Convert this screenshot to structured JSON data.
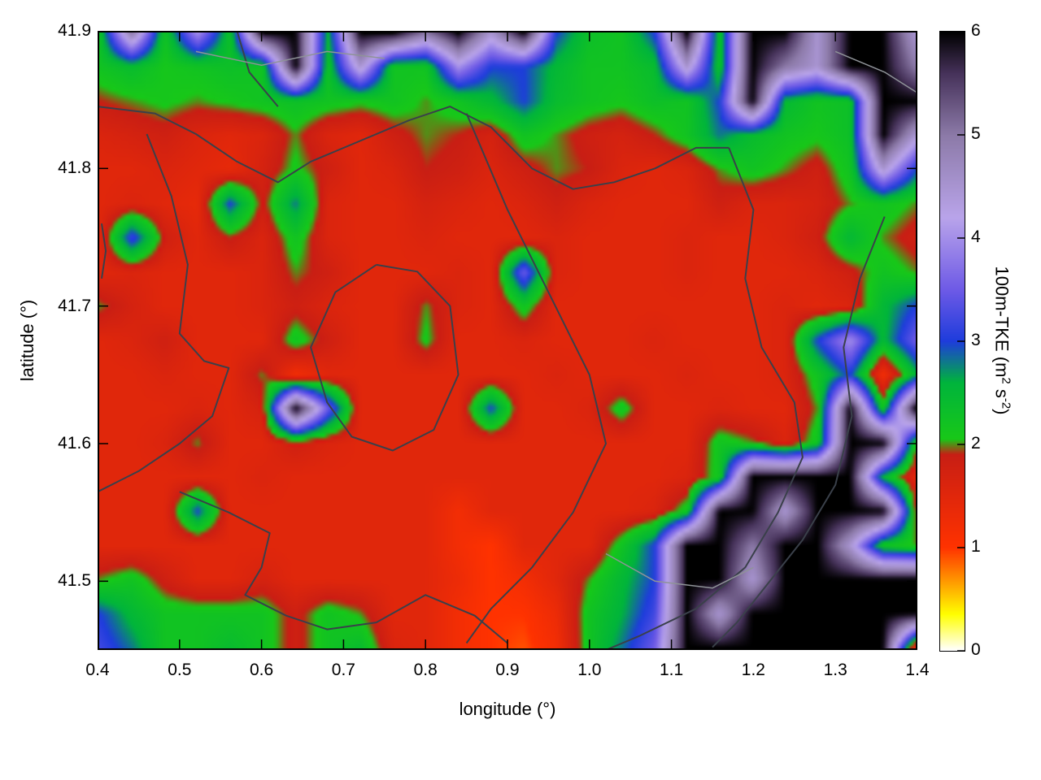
{
  "chart_data": {
    "type": "heatmap",
    "xlabel": "longitude (°)",
    "ylabel": "latitude (°)",
    "x_range": [
      0.4,
      1.4
    ],
    "y_range": [
      41.45,
      41.9
    ],
    "colorbar_range": [
      0,
      6
    ],
    "colorbar_title_parts": [
      {
        "t": "100m-TKE (m"
      },
      {
        "t": "2",
        "sup": true
      },
      {
        "t": " s"
      },
      {
        "t": "-2",
        "sup": true
      },
      {
        "t": ")"
      }
    ],
    "x_ticks": [
      {
        "v": 0.4,
        "label": "0.4"
      },
      {
        "v": 0.5,
        "label": "0.5"
      },
      {
        "v": 0.6,
        "label": "0.6"
      },
      {
        "v": 0.7,
        "label": "0.7"
      },
      {
        "v": 0.8,
        "label": "0.8"
      },
      {
        "v": 0.9,
        "label": "0.9"
      },
      {
        "v": 1.0,
        "label": "1.0"
      },
      {
        "v": 1.1,
        "label": "1.1"
      },
      {
        "v": 1.2,
        "label": "1.2"
      },
      {
        "v": 1.3,
        "label": "1.3"
      },
      {
        "v": 1.4,
        "label": "1.4"
      }
    ],
    "y_ticks": [
      {
        "v": 41.5,
        "label": "41.5"
      },
      {
        "v": 41.6,
        "label": "41.6"
      },
      {
        "v": 41.7,
        "label": "41.7"
      },
      {
        "v": 41.8,
        "label": "41.8"
      },
      {
        "v": 41.9,
        "label": "41.9"
      }
    ],
    "colorbar_ticks": [
      {
        "v": 0,
        "label": "0"
      },
      {
        "v": 1,
        "label": "1"
      },
      {
        "v": 2,
        "label": "2"
      },
      {
        "v": 3,
        "label": "3"
      },
      {
        "v": 4,
        "label": "4"
      },
      {
        "v": 5,
        "label": "5"
      },
      {
        "v": 6,
        "label": "6"
      }
    ],
    "palette_stops": [
      [
        0.0,
        "#ffffff"
      ],
      [
        0.35,
        "#ffff00"
      ],
      [
        0.7,
        "#ff9000"
      ],
      [
        1.0,
        "#ff3200"
      ],
      [
        1.9,
        "#c81e14"
      ],
      [
        2.05,
        "#18c818"
      ],
      [
        2.6,
        "#00b43c"
      ],
      [
        3.0,
        "#1e3cdc"
      ],
      [
        3.5,
        "#6e5ae6"
      ],
      [
        4.2,
        "#b9a4ea"
      ],
      [
        5.0,
        "#8c7aa8"
      ],
      [
        5.6,
        "#46325a"
      ],
      [
        6.0,
        "#000000"
      ]
    ],
    "grid_note": "100m-TKE values (m2 s-2) sampled on 26 lon x 19 lat grid; lon 0.4..1.4 step 0.04, lat 41.9..41.45 step 0.025 (rows top to bottom)",
    "values": [
      [
        2.3,
        5,
        2.2,
        4,
        2.3,
        6,
        6,
        2.5,
        6,
        6,
        5,
        6,
        4.5,
        6,
        3,
        2.3,
        2.2,
        3,
        6,
        2.3,
        6,
        6,
        4.5,
        6,
        6,
        4.5
      ],
      [
        2.2,
        2.4,
        2.1,
        2.2,
        2.3,
        2.2,
        6,
        2.3,
        4.5,
        2.2,
        2.2,
        4,
        3,
        3,
        2.5,
        2.2,
        2.2,
        2.4,
        4.5,
        2.3,
        6,
        5,
        4.5,
        6,
        6,
        5
      ],
      [
        1.9,
        2.0,
        2.1,
        2.0,
        2.1,
        2.2,
        2.3,
        2.2,
        2.1,
        2.2,
        2.0,
        2.2,
        2.5,
        3.0,
        2.4,
        2.2,
        2.1,
        2.3,
        2.2,
        3.0,
        6,
        2.5,
        2.2,
        2.3,
        6,
        6
      ],
      [
        1.6,
        1.7,
        1.8,
        1.6,
        1.5,
        1.6,
        2.0,
        1.6,
        1.5,
        1.8,
        2.0,
        1.9,
        1.7,
        2.2,
        2.0,
        1.8,
        1.7,
        1.9,
        2.2,
        2.8,
        2.4,
        2.2,
        2.1,
        2.3,
        6,
        4.5
      ],
      [
        1.5,
        1.5,
        1.6,
        1.5,
        1.4,
        1.7,
        2.1,
        1.8,
        1.5,
        1.6,
        1.9,
        1.8,
        1.6,
        1.8,
        2.0,
        1.9,
        1.6,
        1.5,
        1.6,
        2.0,
        2.2,
        2.0,
        1.8,
        2.2,
        4.5,
        3.0
      ],
      [
        1.5,
        1.6,
        1.5,
        1.4,
        3.0,
        1.8,
        2.8,
        1.6,
        1.5,
        1.5,
        1.7,
        1.6,
        1.5,
        1.6,
        1.8,
        1.6,
        1.5,
        1.5,
        1.5,
        1.8,
        1.6,
        1.6,
        1.7,
        2.0,
        2.2,
        2.0
      ],
      [
        1.5,
        3.2,
        1.8,
        1.5,
        1.9,
        1.6,
        2.2,
        1.6,
        1.5,
        1.5,
        1.6,
        1.5,
        1.5,
        1.5,
        1.6,
        1.5,
        1.5,
        1.5,
        1.6,
        1.5,
        1.5,
        1.6,
        1.8,
        2.5,
        2.0,
        1.8
      ],
      [
        1.5,
        1.6,
        1.5,
        1.5,
        1.5,
        1.6,
        2.0,
        1.8,
        1.5,
        1.5,
        1.5,
        1.6,
        1.5,
        3.5,
        1.6,
        1.5,
        1.5,
        1.5,
        1.6,
        1.5,
        1.5,
        1.5,
        1.6,
        1.8,
        2.2,
        2.0
      ],
      [
        2.0,
        1.7,
        1.5,
        1.5,
        1.5,
        1.6,
        1.8,
        1.6,
        1.5,
        1.5,
        2.0,
        1.6,
        1.5,
        2.2,
        1.5,
        1.5,
        1.5,
        1.5,
        1.5,
        1.5,
        1.5,
        1.6,
        1.5,
        1.6,
        2.5,
        3.0
      ],
      [
        1.5,
        1.6,
        1.8,
        1.5,
        1.5,
        1.5,
        2.2,
        1.8,
        1.5,
        1.5,
        2.1,
        1.5,
        1.5,
        1.6,
        1.5,
        1.5,
        1.5,
        1.6,
        1.5,
        1.5,
        1.5,
        1.6,
        3.0,
        4.0,
        2.5,
        3.5
      ],
      [
        1.5,
        1.5,
        1.6,
        1.5,
        1.5,
        2.0,
        1.2,
        1.5,
        1.5,
        1.5,
        1.5,
        1.5,
        1.5,
        1.5,
        1.6,
        1.5,
        1.5,
        1.5,
        1.6,
        1.5,
        1.5,
        1.6,
        2.2,
        3.0,
        1.2,
        2.5
      ],
      [
        1.5,
        1.5,
        1.5,
        1.6,
        1.5,
        1.7,
        6,
        3.5,
        1.5,
        1.5,
        1.5,
        1.5,
        3.0,
        1.5,
        1.5,
        1.6,
        2.2,
        1.5,
        1.5,
        1.6,
        1.5,
        1.5,
        2.0,
        6,
        2.2,
        6
      ],
      [
        1.5,
        1.5,
        1.6,
        2.0,
        1.5,
        1.5,
        1.8,
        1.6,
        1.5,
        1.5,
        1.5,
        1.5,
        1.5,
        1.5,
        1.5,
        1.5,
        1.5,
        1.5,
        1.5,
        2.2,
        2.0,
        1.6,
        2.2,
        6,
        6,
        2.2
      ],
      [
        1.5,
        1.5,
        1.5,
        1.5,
        1.5,
        1.6,
        1.5,
        1.5,
        1.5,
        1.5,
        1.5,
        1.5,
        1.5,
        1.5,
        1.5,
        1.5,
        1.5,
        1.5,
        1.6,
        2.2,
        6,
        6,
        6,
        6,
        2.5,
        1.5
      ],
      [
        1.5,
        1.5,
        1.5,
        3.0,
        1.5,
        1.5,
        1.5,
        1.5,
        1.5,
        1.5,
        1.5,
        1.2,
        1.5,
        1.5,
        1.5,
        1.5,
        1.5,
        1.6,
        2.2,
        6,
        6,
        4.5,
        6,
        6,
        6,
        2.0
      ],
      [
        1.5,
        1.5,
        1.5,
        1.5,
        1.5,
        1.5,
        1.5,
        1.5,
        1.5,
        1.5,
        1.5,
        1.2,
        1.0,
        1.5,
        1.5,
        1.5,
        2.2,
        3.0,
        6,
        6,
        5,
        6,
        6,
        4.5,
        2.2,
        2.0
      ],
      [
        2.0,
        2.2,
        1.8,
        1.5,
        1.5,
        1.7,
        1.5,
        1.5,
        1.5,
        1.5,
        1.5,
        1.3,
        1.0,
        1.2,
        1.5,
        2.0,
        2.5,
        3.0,
        6,
        6,
        4.5,
        6,
        6,
        6,
        6,
        6
      ],
      [
        3.0,
        2.5,
        2.2,
        2.2,
        2.2,
        2.2,
        1.8,
        2.2,
        2.0,
        1.5,
        1.5,
        1.2,
        1.0,
        1.0,
        1.3,
        2.2,
        2.6,
        3.2,
        6,
        4.5,
        6,
        6,
        6,
        6,
        6,
        6
      ],
      [
        3.2,
        2.8,
        2.2,
        2.2,
        2.4,
        2.2,
        1.8,
        2.2,
        2.4,
        1.6,
        1.5,
        1.2,
        1.0,
        0.9,
        1.2,
        2.2,
        2.8,
        3.5,
        6,
        6,
        6,
        6,
        6,
        6,
        6,
        1.3
      ]
    ],
    "contours": [
      {
        "shade": "dark",
        "points": [
          [
            0.4,
            41.845
          ],
          [
            0.47,
            41.84
          ],
          [
            0.52,
            41.825
          ],
          [
            0.57,
            41.805
          ],
          [
            0.62,
            41.79
          ],
          [
            0.66,
            41.805
          ],
          [
            0.72,
            41.82
          ],
          [
            0.78,
            41.835
          ],
          [
            0.83,
            41.845
          ],
          [
            0.88,
            41.83
          ],
          [
            0.93,
            41.8
          ],
          [
            0.98,
            41.785
          ],
          [
            1.03,
            41.79
          ],
          [
            1.08,
            41.8
          ],
          [
            1.13,
            41.815
          ],
          [
            1.17,
            41.815
          ]
        ]
      },
      {
        "shade": "dark",
        "points": [
          [
            0.46,
            41.825
          ],
          [
            0.49,
            41.78
          ],
          [
            0.51,
            41.73
          ],
          [
            0.5,
            41.68
          ],
          [
            0.53,
            41.66
          ],
          [
            0.56,
            41.655
          ],
          [
            0.54,
            41.62
          ],
          [
            0.5,
            41.6
          ],
          [
            0.45,
            41.58
          ],
          [
            0.4,
            41.565
          ]
        ]
      },
      {
        "shade": "dark",
        "points": [
          [
            1.17,
            41.815
          ],
          [
            1.2,
            41.77
          ],
          [
            1.19,
            41.72
          ],
          [
            1.21,
            41.67
          ],
          [
            1.25,
            41.63
          ],
          [
            1.26,
            41.59
          ],
          [
            1.23,
            41.55
          ],
          [
            1.19,
            41.51
          ],
          [
            1.13,
            41.48
          ],
          [
            1.06,
            41.46
          ],
          [
            1.02,
            41.45
          ]
        ]
      },
      {
        "shade": "dark",
        "points": [
          [
            0.74,
            41.73
          ],
          [
            0.69,
            41.71
          ],
          [
            0.66,
            41.67
          ],
          [
            0.68,
            41.63
          ],
          [
            0.71,
            41.605
          ],
          [
            0.76,
            41.595
          ],
          [
            0.81,
            41.61
          ],
          [
            0.84,
            41.65
          ],
          [
            0.83,
            41.7
          ],
          [
            0.79,
            41.725
          ],
          [
            0.74,
            41.73
          ]
        ]
      },
      {
        "shade": "dark",
        "points": [
          [
            0.85,
            41.84
          ],
          [
            0.9,
            41.77
          ],
          [
            0.95,
            41.71
          ],
          [
            1.0,
            41.65
          ],
          [
            1.02,
            41.6
          ],
          [
            0.98,
            41.55
          ],
          [
            0.93,
            41.51
          ],
          [
            0.88,
            41.48
          ],
          [
            0.85,
            41.455
          ]
        ]
      },
      {
        "shade": "dark",
        "points": [
          [
            0.5,
            41.565
          ],
          [
            0.56,
            41.55
          ],
          [
            0.61,
            41.535
          ],
          [
            0.6,
            41.51
          ],
          [
            0.58,
            41.49
          ],
          [
            0.63,
            41.475
          ],
          [
            0.68,
            41.465
          ],
          [
            0.74,
            41.47
          ],
          [
            0.8,
            41.49
          ],
          [
            0.86,
            41.475
          ],
          [
            0.9,
            41.455
          ]
        ]
      },
      {
        "shade": "dark",
        "points": [
          [
            1.36,
            41.765
          ],
          [
            1.33,
            41.72
          ],
          [
            1.31,
            41.67
          ],
          [
            1.32,
            41.62
          ],
          [
            1.3,
            41.57
          ],
          [
            1.26,
            41.53
          ],
          [
            1.22,
            41.5
          ],
          [
            1.18,
            41.47
          ],
          [
            1.15,
            41.452
          ]
        ]
      },
      {
        "shade": "dark",
        "points": [
          [
            0.57,
            41.9
          ],
          [
            0.585,
            41.87
          ],
          [
            0.62,
            41.845
          ]
        ]
      },
      {
        "shade": "dark",
        "points": [
          [
            0.405,
            41.76
          ],
          [
            0.41,
            41.74
          ],
          [
            0.405,
            41.72
          ]
        ]
      },
      {
        "shade": "light",
        "points": [
          [
            1.02,
            41.52
          ],
          [
            1.08,
            41.5
          ],
          [
            1.15,
            41.495
          ],
          [
            1.2,
            41.51
          ]
        ]
      },
      {
        "shade": "light",
        "points": [
          [
            0.52,
            41.885
          ],
          [
            0.6,
            41.875
          ],
          [
            0.68,
            41.885
          ],
          [
            0.75,
            41.88
          ]
        ]
      },
      {
        "shade": "light",
        "points": [
          [
            1.3,
            41.885
          ],
          [
            1.36,
            41.87
          ],
          [
            1.4,
            41.855
          ]
        ]
      }
    ],
    "contour_colors": {
      "dark": "#3a404a",
      "light": "#8f9398"
    },
    "legend_position": "right-colorbar",
    "grid": false
  }
}
